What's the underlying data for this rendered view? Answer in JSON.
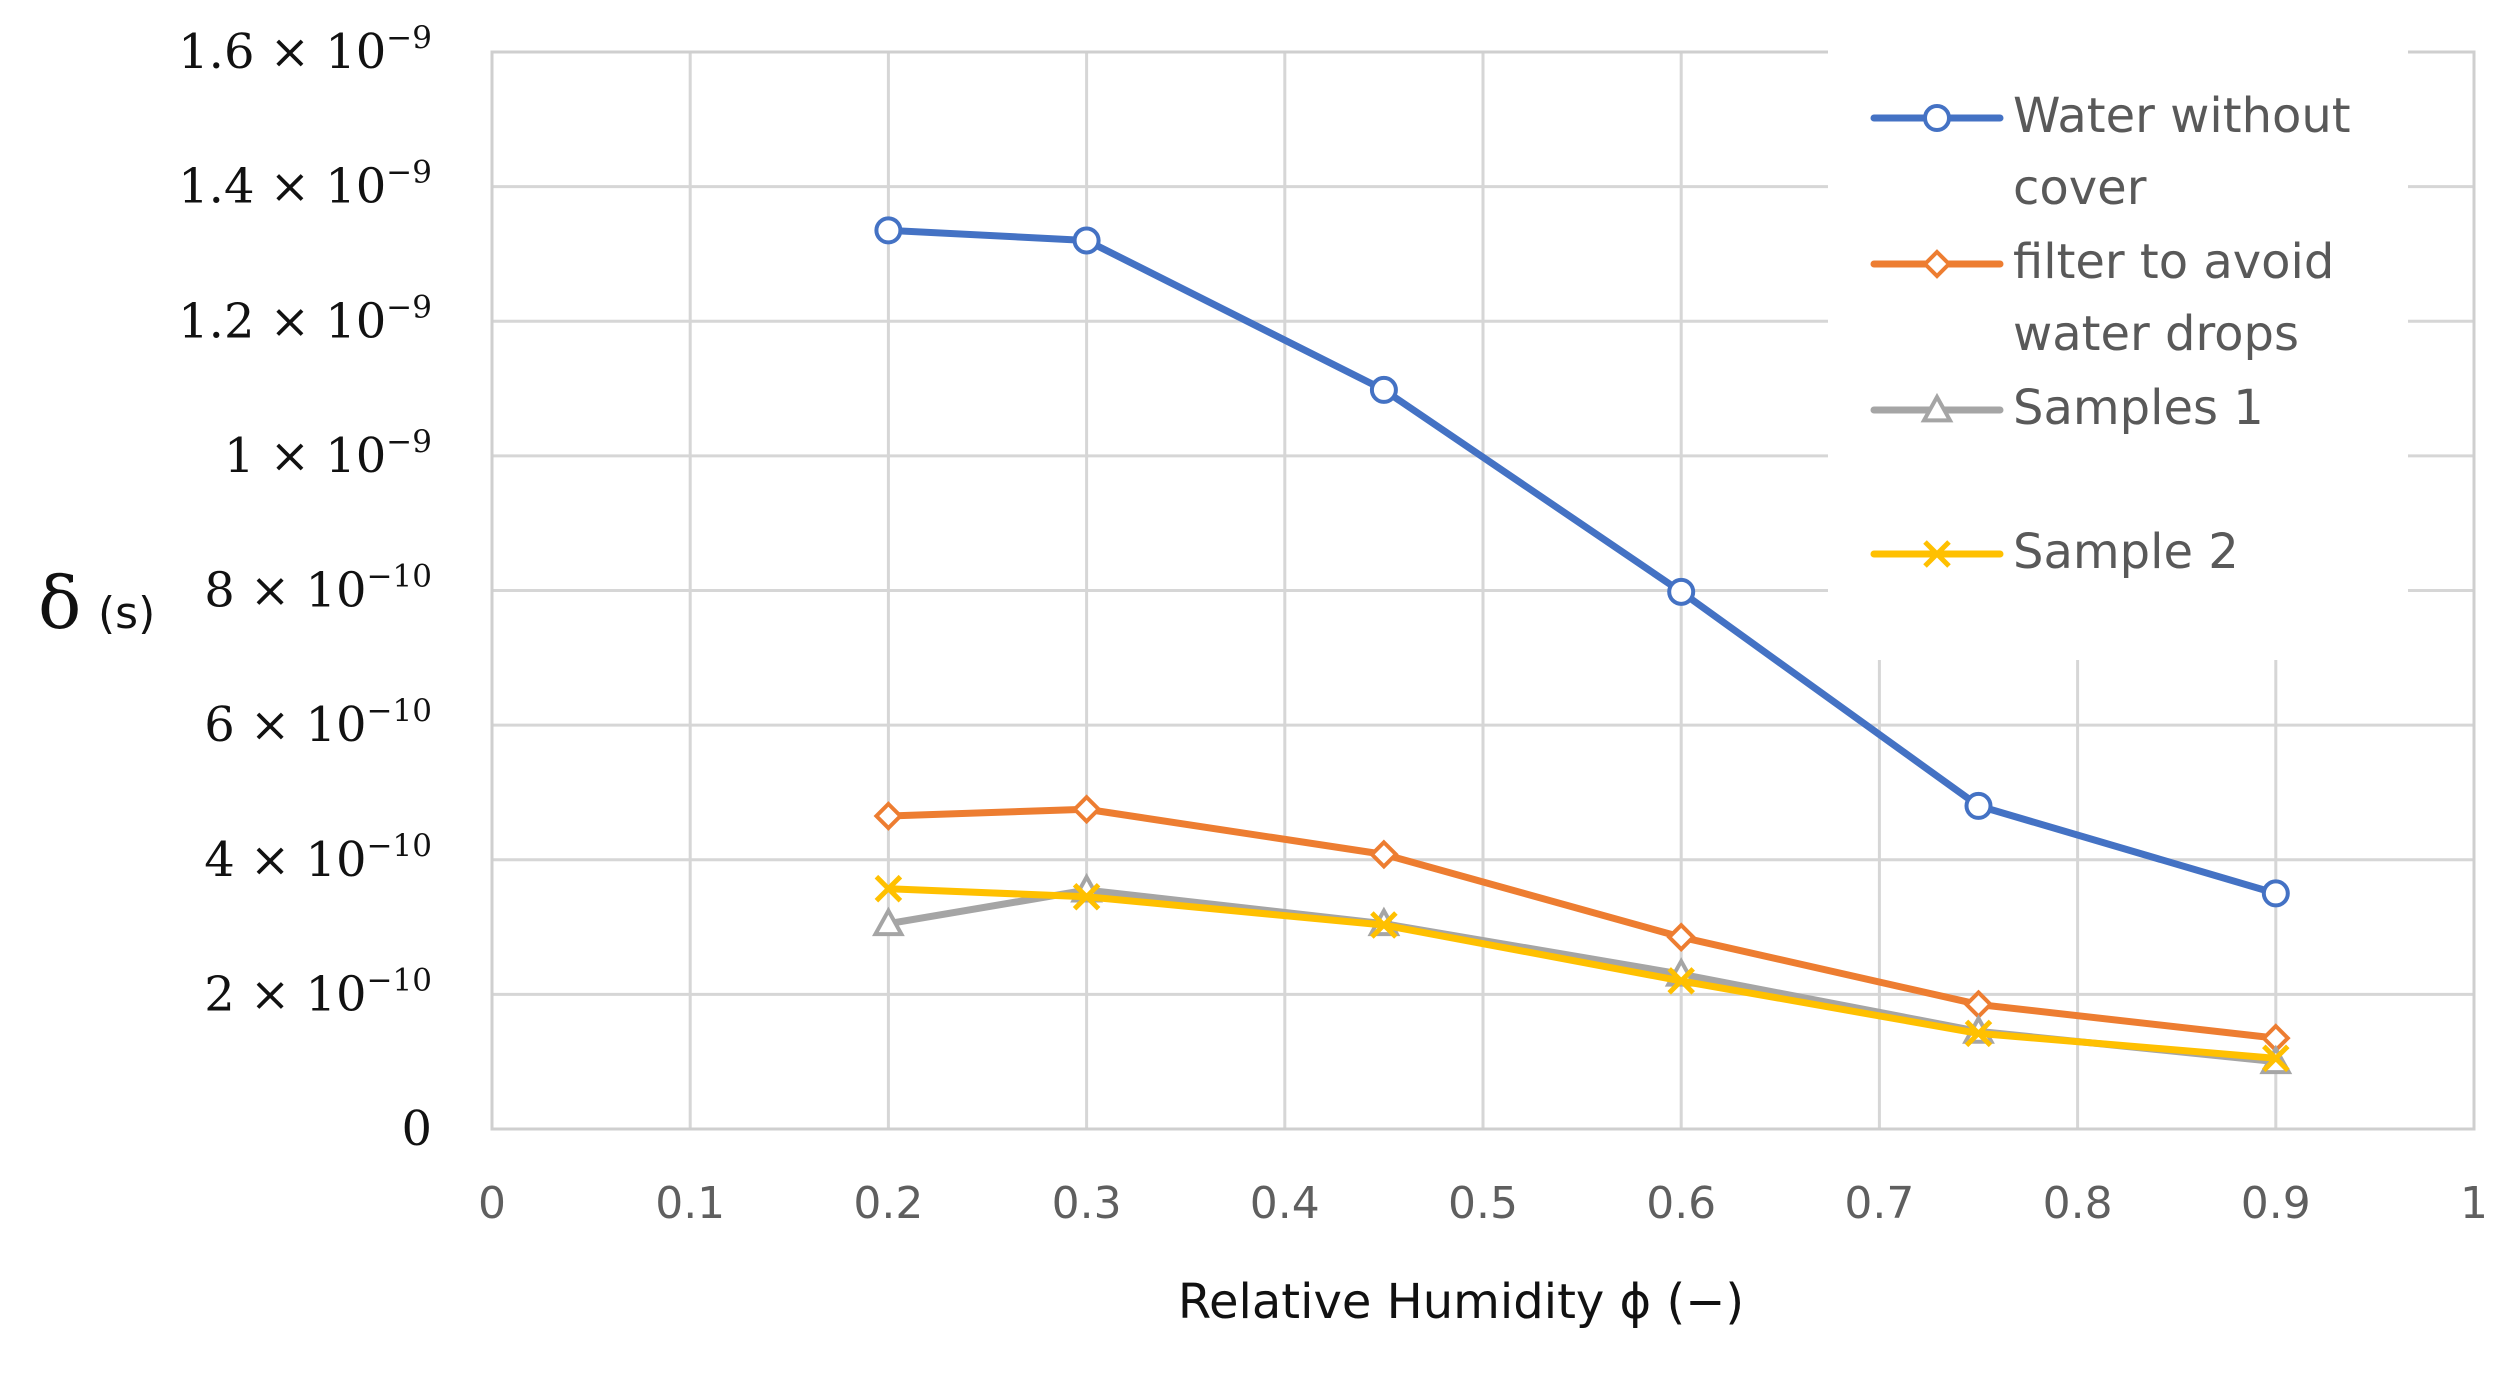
{
  "chart_data": {
    "type": "line",
    "title": "",
    "xlabel": "Relative Humidity ϕ (−)",
    "ylabel_symbol": "δ",
    "ylabel_unit": "(s)",
    "xlim": [
      0,
      1
    ],
    "ylim": [
      0,
      1.6e-09
    ],
    "grid": true,
    "legend_position": "top-right",
    "x_ticks": [
      0,
      0.1,
      0.2,
      0.3,
      0.4,
      0.5,
      0.6,
      0.7,
      0.8,
      0.9,
      1
    ],
    "x_tick_labels": [
      "0",
      "0.1",
      "0.2",
      "0.3",
      "0.4",
      "0.5",
      "0.6",
      "0.7",
      "0.8",
      "0.9",
      "1"
    ],
    "y_ticks": [
      0,
      2e-10,
      4e-10,
      6e-10,
      8e-10,
      1e-09,
      1.2e-09,
      1.4e-09,
      1.6e-09
    ],
    "y_tick_labels": [
      {
        "mantissa": "0",
        "exponent": ""
      },
      {
        "mantissa": "2 × 10",
        "exponent": "−10"
      },
      {
        "mantissa": "4 × 10",
        "exponent": "−10"
      },
      {
        "mantissa": "6 × 10",
        "exponent": "−10"
      },
      {
        "mantissa": "8 × 10",
        "exponent": "−10"
      },
      {
        "mantissa": "1 × 10",
        "exponent": "−9"
      },
      {
        "mantissa": "1.2 × 10",
        "exponent": "−9"
      },
      {
        "mantissa": "1.4 × 10",
        "exponent": "−9"
      },
      {
        "mantissa": "1.6 × 10",
        "exponent": "−9"
      }
    ],
    "series": [
      {
        "name": "Water without cover",
        "legend_lines": [
          "Water without",
          "cover"
        ],
        "color": "#4472c4",
        "marker": "circle",
        "x": [
          0.2,
          0.3,
          0.45,
          0.6,
          0.75,
          0.9
        ],
        "y": [
          1.335e-09,
          1.32e-09,
          1.098e-09,
          7.98e-10,
          4.8e-10,
          3.5e-10
        ]
      },
      {
        "name": "filter to avoid water drops",
        "legend_lines": [
          "filter to avoid",
          "water drops"
        ],
        "color": "#ed7d31",
        "marker": "diamond",
        "x": [
          0.2,
          0.3,
          0.45,
          0.6,
          0.75,
          0.9
        ],
        "y": [
          4.65e-10,
          4.75e-10,
          4.08e-10,
          2.85e-10,
          1.85e-10,
          1.35e-10
        ]
      },
      {
        "name": "Samples 1",
        "legend_lines": [
          "Samples 1"
        ],
        "color": "#a5a5a5",
        "marker": "triangle",
        "x": [
          0.2,
          0.3,
          0.45,
          0.6,
          0.75,
          0.9
        ],
        "y": [
          3.05e-10,
          3.55e-10,
          3.05e-10,
          2.3e-10,
          1.45e-10,
          1e-10
        ]
      },
      {
        "name": "Sample 2",
        "legend_lines": [
          "Sample 2"
        ],
        "color": "#ffc000",
        "marker": "x",
        "x": [
          0.2,
          0.3,
          0.45,
          0.6,
          0.75,
          0.9
        ],
        "y": [
          3.57e-10,
          3.45e-10,
          3.03e-10,
          2.2e-10,
          1.42e-10,
          1.05e-10
        ]
      }
    ]
  }
}
